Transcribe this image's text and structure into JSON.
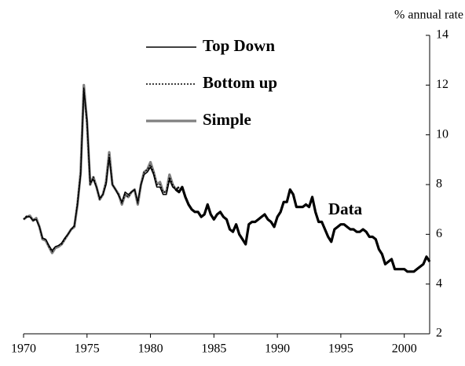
{
  "chart_data": {
    "type": "line",
    "y_axis_label": "% annual rate",
    "y_axis_side": "right",
    "xlim": [
      1970,
      2002
    ],
    "xticks": [
      1970,
      1975,
      1980,
      1985,
      1990,
      1995,
      2000
    ],
    "ylim": [
      2,
      14
    ],
    "yticks": [
      2,
      4,
      6,
      8,
      10,
      12,
      14
    ],
    "grid": false,
    "legend": "upper left",
    "series": [
      {
        "name": "Top Down",
        "color": "#000000",
        "style": "solid",
        "in_legend": true,
        "x": [
          1970,
          1970.25,
          1970.5,
          1970.75,
          1971,
          1971.25,
          1971.5,
          1971.75,
          1972,
          1972.25,
          1972.5,
          1972.75,
          1973,
          1973.25,
          1973.5,
          1973.75,
          1974,
          1974.25,
          1974.5,
          1974.75,
          1975,
          1975.25,
          1975.5,
          1975.75,
          1976,
          1976.25,
          1976.5,
          1976.75,
          1977,
          1977.25,
          1977.5,
          1977.75,
          1978,
          1978.25,
          1978.5,
          1978.75,
          1979,
          1979.25,
          1979.5,
          1979.75,
          1980,
          1980.25,
          1980.5,
          1980.75,
          1981,
          1981.25,
          1981.5,
          1981.75,
          1982,
          1982.25
        ],
        "values": [
          6.6,
          6.7,
          6.7,
          6.55,
          6.6,
          6.3,
          5.85,
          5.8,
          5.55,
          5.35,
          5.5,
          5.55,
          5.65,
          5.85,
          6.0,
          6.2,
          6.35,
          7.2,
          8.4,
          11.8,
          10.6,
          8.1,
          8.2,
          7.9,
          7.45,
          7.6,
          8.0,
          9.1,
          8.0,
          7.8,
          7.55,
          7.3,
          7.7,
          7.6,
          7.7,
          7.8,
          7.3,
          8.0,
          8.4,
          8.5,
          8.7,
          8.4,
          7.9,
          7.9,
          7.6,
          7.6,
          8.2,
          7.9,
          7.8,
          7.9
        ]
      },
      {
        "name": "Bottom up",
        "color": "#000000",
        "style": "dotted",
        "in_legend": true,
        "x": [
          1970,
          1970.25,
          1970.5,
          1970.75,
          1971,
          1971.25,
          1971.5,
          1971.75,
          1972,
          1972.25,
          1972.5,
          1972.75,
          1973,
          1973.25,
          1973.5,
          1973.75,
          1974,
          1974.25,
          1974.5,
          1974.75,
          1975,
          1975.25,
          1975.5,
          1975.75,
          1976,
          1976.25,
          1976.5,
          1976.75,
          1977,
          1977.25,
          1977.5,
          1977.75,
          1978,
          1978.25,
          1978.5,
          1978.75,
          1979,
          1979.25,
          1979.5,
          1979.75,
          1980,
          1980.25,
          1980.5,
          1980.75,
          1981,
          1981.25,
          1981.5,
          1981.75,
          1982,
          1982.25
        ],
        "values": [
          6.6,
          6.75,
          6.7,
          6.6,
          6.6,
          6.3,
          5.8,
          5.8,
          5.5,
          5.3,
          5.5,
          5.55,
          5.6,
          5.8,
          6.0,
          6.2,
          6.3,
          7.3,
          8.5,
          11.9,
          10.4,
          8.0,
          8.3,
          7.9,
          7.4,
          7.6,
          8.1,
          9.2,
          8.0,
          7.8,
          7.6,
          7.25,
          7.6,
          7.5,
          7.7,
          7.8,
          7.25,
          8.0,
          8.5,
          8.6,
          8.8,
          8.5,
          8.0,
          8.0,
          7.7,
          7.7,
          8.3,
          8.0,
          7.8,
          7.9
        ]
      },
      {
        "name": "Simple",
        "color": "#808080",
        "style": "thick",
        "in_legend": true,
        "x": [
          1970,
          1970.25,
          1970.5,
          1970.75,
          1971,
          1971.25,
          1971.5,
          1971.75,
          1972,
          1972.25,
          1972.5,
          1972.75,
          1973,
          1973.25,
          1973.5,
          1973.75,
          1974,
          1974.25,
          1974.5,
          1974.75,
          1975,
          1975.25,
          1975.5,
          1975.75,
          1976,
          1976.25,
          1976.5,
          1976.75,
          1977,
          1977.25,
          1977.5,
          1977.75,
          1978,
          1978.25,
          1978.5,
          1978.75,
          1979,
          1979.25,
          1979.5,
          1979.75,
          1980,
          1980.25,
          1980.5,
          1980.75,
          1981,
          1981.25,
          1981.5,
          1981.75,
          1982,
          1982.25
        ],
        "values": [
          6.6,
          6.7,
          6.75,
          6.55,
          6.65,
          6.3,
          5.8,
          5.75,
          5.5,
          5.25,
          5.45,
          5.5,
          5.6,
          5.8,
          6.0,
          6.2,
          6.3,
          7.2,
          8.5,
          12.0,
          10.5,
          8.0,
          8.3,
          7.9,
          7.4,
          7.6,
          8.1,
          9.3,
          8.0,
          7.8,
          7.6,
          7.2,
          7.6,
          7.5,
          7.7,
          7.8,
          7.2,
          8.0,
          8.5,
          8.6,
          8.9,
          8.5,
          8.0,
          8.1,
          7.7,
          7.7,
          8.4,
          8.0,
          7.8,
          7.9
        ]
      },
      {
        "name": "Data",
        "color": "#000000",
        "style": "thick",
        "in_legend": false,
        "x": [
          1982,
          1982.25,
          1982.5,
          1982.75,
          1983,
          1983.25,
          1983.5,
          1983.75,
          1984,
          1984.25,
          1984.5,
          1984.75,
          1985,
          1985.25,
          1985.5,
          1985.75,
          1986,
          1986.25,
          1986.5,
          1986.75,
          1987,
          1987.25,
          1987.5,
          1987.75,
          1988,
          1988.25,
          1988.5,
          1988.75,
          1989,
          1989.25,
          1989.5,
          1989.75,
          1990,
          1990.25,
          1990.5,
          1990.75,
          1991,
          1991.25,
          1991.5,
          1991.75,
          1992,
          1992.25,
          1992.5,
          1992.75,
          1993,
          1993.25,
          1993.5,
          1993.75,
          1994,
          1994.25,
          1994.5,
          1994.75,
          1995,
          1995.25,
          1995.5,
          1995.75,
          1996,
          1996.25,
          1996.5,
          1996.75,
          1997,
          1997.25,
          1997.5,
          1997.75,
          1998,
          1998.25,
          1998.5,
          1998.75,
          1999,
          1999.25,
          1999.5,
          1999.75,
          2000,
          2000.25,
          2000.5,
          2000.75,
          2001,
          2001.25,
          2001.5,
          2001.75,
          2002
        ],
        "values": [
          7.8,
          7.7,
          7.9,
          7.5,
          7.2,
          7.0,
          6.9,
          6.9,
          6.7,
          6.8,
          7.2,
          6.8,
          6.6,
          6.8,
          6.9,
          6.7,
          6.6,
          6.2,
          6.1,
          6.4,
          6.0,
          5.8,
          5.6,
          6.4,
          6.5,
          6.5,
          6.6,
          6.7,
          6.8,
          6.6,
          6.5,
          6.3,
          6.7,
          6.9,
          7.3,
          7.3,
          7.8,
          7.6,
          7.1,
          7.1,
          7.1,
          7.2,
          7.1,
          7.5,
          6.9,
          6.5,
          6.5,
          6.2,
          5.9,
          5.7,
          6.2,
          6.3,
          6.4,
          6.4,
          6.3,
          6.2,
          6.2,
          6.1,
          6.1,
          6.2,
          6.1,
          5.9,
          5.9,
          5.8,
          5.4,
          5.2,
          4.8,
          4.9,
          5.0,
          4.6,
          4.6,
          4.6,
          4.6,
          4.5,
          4.5,
          4.5,
          4.6,
          4.7,
          4.8,
          5.1,
          4.9
        ]
      }
    ]
  }
}
